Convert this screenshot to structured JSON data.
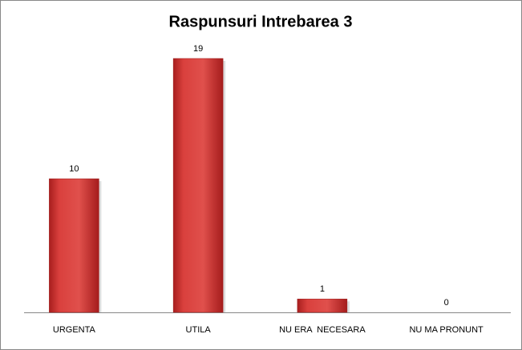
{
  "chart_data": {
    "type": "bar",
    "title": "Raspunsuri Intrebarea 3",
    "categories": [
      "URGENTA",
      "UTILA",
      "NU ERA  NECESARA",
      "NU MA PRONUNT"
    ],
    "values": [
      10,
      19,
      1,
      0
    ],
    "color": "#d63c3a"
  }
}
